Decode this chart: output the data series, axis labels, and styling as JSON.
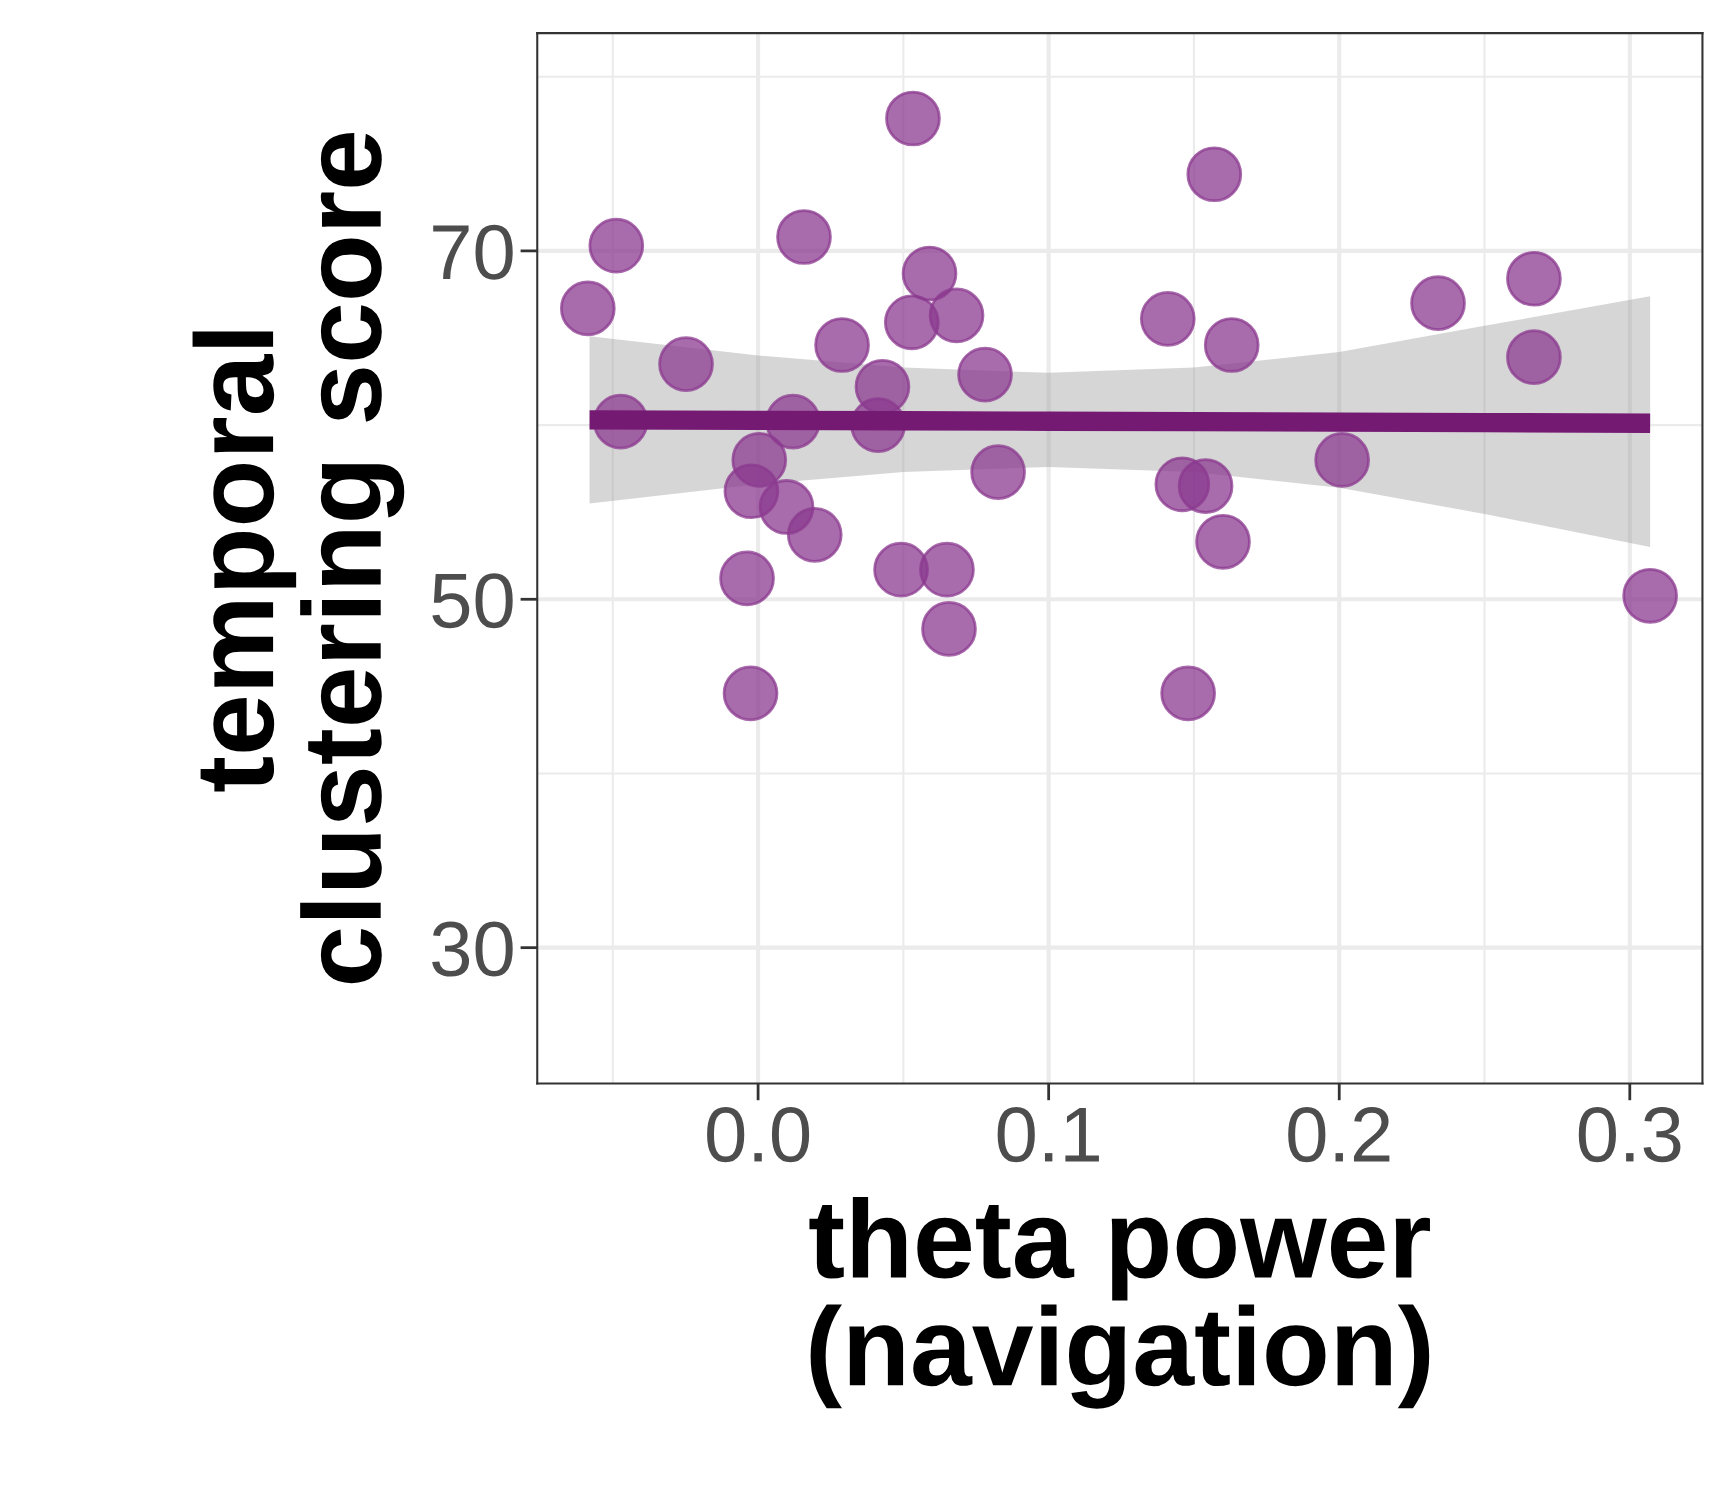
{
  "chart_data": {
    "type": "scatter",
    "xlabel": "theta power\n(navigation)",
    "ylabel": "temporal\nclustering score",
    "xlim": [
      -0.076,
      0.325
    ],
    "ylim": [
      22.2,
      82.5
    ],
    "xticks": [
      {
        "value": 0,
        "label": "0.0"
      },
      0.1,
      0.2,
      0.3
    ],
    "yticks": [
      30,
      50,
      70
    ],
    "grid": true,
    "marker": "circle",
    "series": [
      {
        "color": "#8b3a8f",
        "x": [
          -0.0586,
          -0.0488,
          -0.0473,
          -0.0248,
          0.0533,
          0.0158,
          0.059,
          0.0683,
          0.0529,
          0.0289,
          0.0428,
          0.0781,
          0.0413,
          0.012,
          0.0004,
          -0.0023,
          0.0098,
          0.0195,
          -0.0038,
          -0.0026,
          0.0492,
          0.065,
          0.0657,
          0.0826,
          0.157,
          0.141,
          0.163,
          0.146,
          0.154,
          0.16,
          0.148,
          0.201,
          0.234,
          0.267,
          0.267,
          0.307
        ],
        "values": [
          66.7,
          70.3,
          60.2,
          63.5,
          77.6,
          70.8,
          68.7,
          66.3,
          65.9,
          64.6,
          62.2,
          62.9,
          60.0,
          60.2,
          58.0,
          56.2,
          55.3,
          53.7,
          51.2,
          44.6,
          51.7,
          51.7,
          48.3,
          57.3,
          74.4,
          66.1,
          64.6,
          56.6,
          56.5,
          53.3,
          44.6,
          58.0,
          67.0,
          68.4,
          63.9,
          50.2
        ]
      },
      {
        "type": "line",
        "color": "#751a73",
        "marker": "none",
        "line_style": "solid",
        "x": [
          -0.058,
          0.0,
          0.05,
          0.1,
          0.15,
          0.2,
          0.25,
          0.307
        ],
        "values": [
          60.3,
          60.27,
          60.25,
          60.22,
          60.2,
          60.17,
          60.14,
          60.1
        ],
        "upper": [
          65.1,
          64.0,
          63.3,
          63.0,
          63.3,
          64.2,
          65.7,
          67.4
        ],
        "lower": [
          55.5,
          56.6,
          57.3,
          57.6,
          57.3,
          56.4,
          54.9,
          53.0
        ]
      }
    ]
  }
}
